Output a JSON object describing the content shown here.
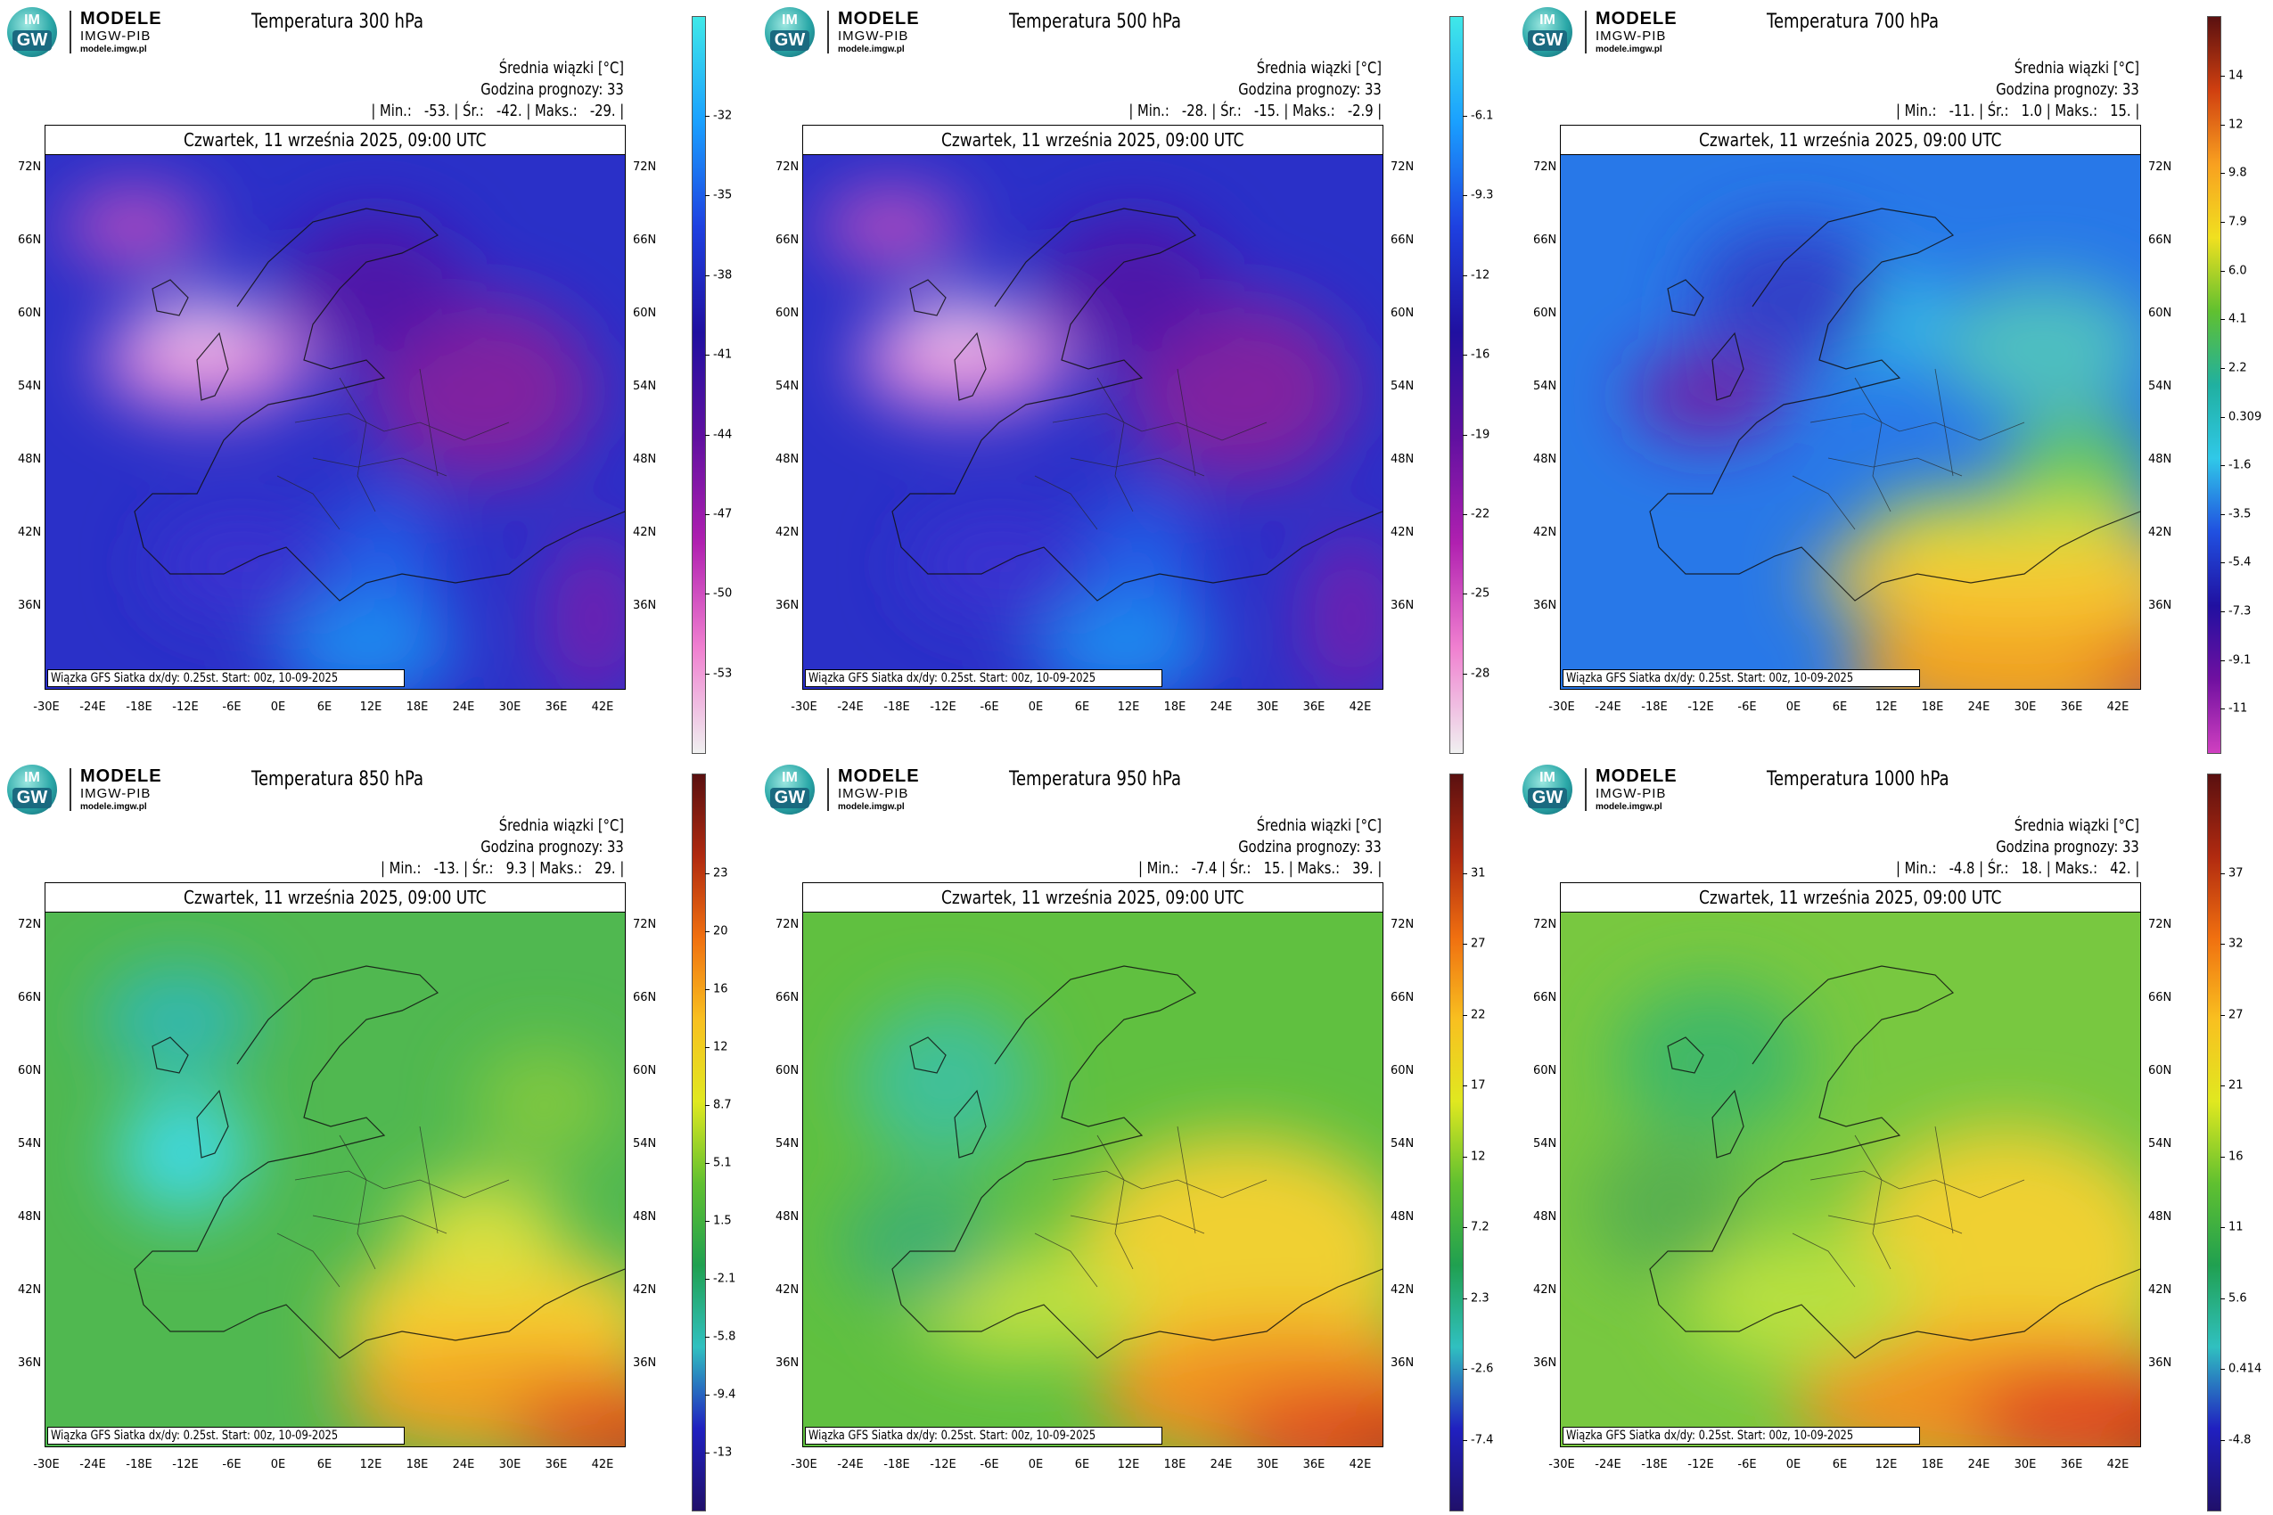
{
  "logo": {
    "line1": "MODELE",
    "line2": "IMGW-PIB",
    "line3": "modele.imgw.pl",
    "mark_top": "IM",
    "mark_bottom": "GW"
  },
  "common": {
    "date": "Czwartek, 11 września 2025, 09:00 UTC",
    "info_label": "Średnia wiązki [°C]",
    "forecast_hour": "Godzina prognozy: 33",
    "footer": "Wiązka GFS Siatka dx/dy: 0.25st. Start: 00z, 10-09-2025",
    "lat_labels": [
      "72N",
      "66N",
      "60N",
      "54N",
      "48N",
      "42N",
      "36N"
    ],
    "lon_labels": [
      "-30E",
      "-24E",
      "-18E",
      "-12E",
      "-6E",
      "0E",
      "6E",
      "12E",
      "18E",
      "24E",
      "30E",
      "36E",
      "42E"
    ]
  },
  "panels": [
    {
      "title": "Temperatura 300 hPa",
      "stats": "| Min.:   -53. | Śr.:   -42. | Maks.:   -29. |",
      "colorbar": [
        "-32",
        "-35",
        "-38",
        "-41",
        "-44",
        "-47",
        "-50",
        "-53"
      ],
      "scheme": "cold"
    },
    {
      "title": "Temperatura 500 hPa",
      "stats": "| Min.:   -28. | Śr.:   -15. | Maks.:   -2.9 |",
      "colorbar": [
        "-6.1",
        "-9.3",
        "-12",
        "-16",
        "-19",
        "-22",
        "-25",
        "-28"
      ],
      "scheme": "cold"
    },
    {
      "title": "Temperatura 700 hPa",
      "stats": "| Min.:   -11. | Śr.:   1.0 | Maks.:   15. |",
      "colorbar": [
        "14",
        "12",
        "9.8",
        "7.9",
        "6.0",
        "4.1",
        "2.2",
        "0.309",
        "-1.6",
        "-3.5",
        "-5.4",
        "-7.3",
        "-9.1",
        "-11"
      ],
      "scheme": "mid"
    },
    {
      "title": "Temperatura 850 hPa",
      "stats": "| Min.:   -13. | Śr.:   9.3 | Maks.:   29. |",
      "colorbar": [
        "23",
        "20",
        "16",
        "12",
        "8.7",
        "5.1",
        "1.5",
        "-2.1",
        "-5.8",
        "-9.4",
        "-13"
      ],
      "scheme": "warm"
    },
    {
      "title": "Temperatura 950 hPa",
      "stats": "| Min.:   -7.4 | Śr.:   15. | Maks.:   39. |",
      "colorbar": [
        "31",
        "27",
        "22",
        "17",
        "12",
        "7.2",
        "2.3",
        "-2.6",
        "-7.4"
      ],
      "scheme": "warm"
    },
    {
      "title": "Temperatura 1000 hPa",
      "stats": "| Min.:   -4.8 | Śr.:   18. | Maks.:   42. |",
      "colorbar": [
        "37",
        "32",
        "27",
        "21",
        "16",
        "11",
        "5.6",
        "0.414",
        "-4.8"
      ],
      "scheme": "warm"
    }
  ],
  "colors": {
    "cold_bar": [
      "#40e8e8",
      "#1aa0ff",
      "#1e40e0",
      "#2010a0",
      "#6010a0",
      "#b020b0",
      "#f080d0",
      "#f0f0f0"
    ],
    "warm_bar": [
      "#5a1010",
      "#b02a10",
      "#f07010",
      "#f8c020",
      "#e0e820",
      "#60c030",
      "#20a050",
      "#30c0c0",
      "#2020c0",
      "#20106a"
    ],
    "mid_bar": [
      "#5a1010",
      "#d04010",
      "#f8a020",
      "#f0e020",
      "#60c030",
      "#20b0a0",
      "#30c8e8",
      "#2050e0",
      "#2010a0",
      "#7010a0",
      "#d040c0"
    ]
  }
}
